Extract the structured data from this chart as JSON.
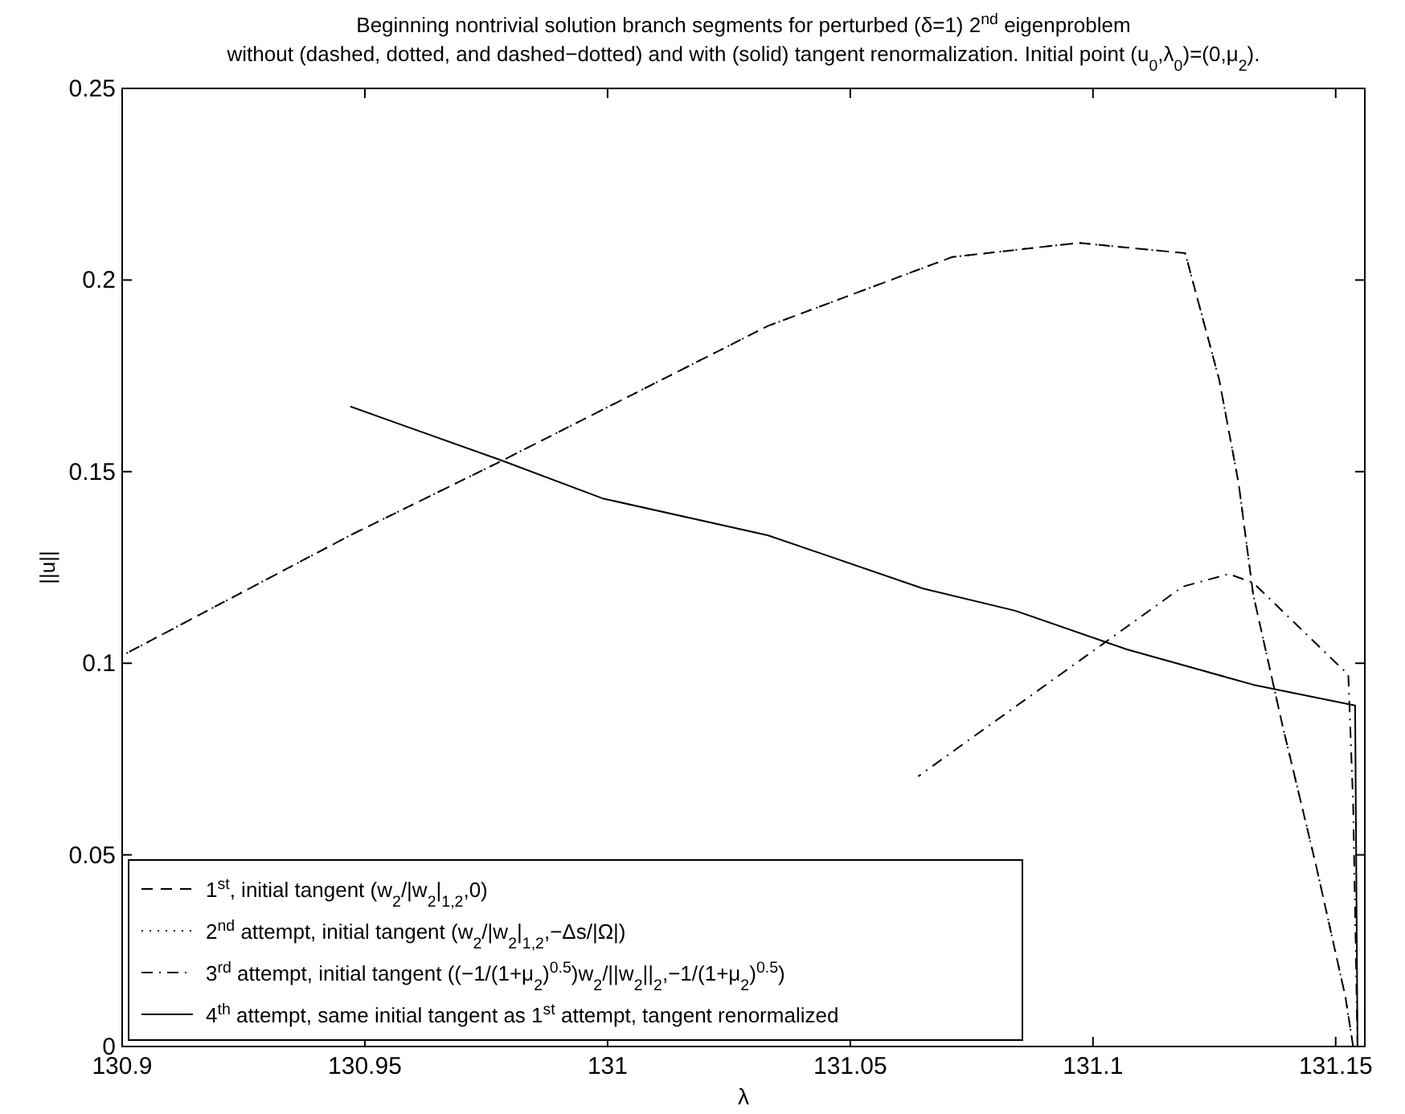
{
  "chart_data": {
    "type": "line",
    "title": "Beginning nontrivial solution branch segments for perturbed (δ=1) 2$^{nd}$ eigenproblem",
    "subtitle": "without (dashed, dotted, and dashed−dotted) and with (solid) tangent renormalization.  Initial point (u$_{0}$,λ$_{0}$)=(0,μ$_{2}$).",
    "xlabel": "λ",
    "ylabel": "||u||",
    "xlim": [
      130.9,
      131.156
    ],
    "xticks": [
      130.9,
      130.95,
      131,
      131.05,
      131.1,
      131.15
    ],
    "ylim": [
      0,
      0.25
    ],
    "yticks": [
      0,
      0.05,
      0.1,
      0.15,
      0.2,
      0.25
    ],
    "grid": false,
    "legend": "bottom left",
    "series": [
      {
        "name": "1$^{st}$, initial tangent (w$_{2}$/|w$_{2}$|$_{1,2}$,0)",
        "color": "#000000",
        "line_style": "dashed",
        "x": [
          131.1536,
          131.152,
          131.146,
          131.139,
          131.133,
          131.13,
          131.126,
          131.119,
          131.097,
          131.071,
          131.033,
          130.978,
          130.947,
          130.9
        ],
        "values": [
          0,
          0.013,
          0.047,
          0.084,
          0.118,
          0.147,
          0.174,
          0.207,
          0.2097,
          0.206,
          0.188,
          0.1527,
          0.1334,
          0.102
        ]
      },
      {
        "name": "2$^{nd}$ attempt, initial tangent (w$_{2}$/|w$_{2}$|$_{1,2}$,−Δs/|Ω|)",
        "color": "#000000",
        "line_style": "dotted",
        "x": [
          131.1536,
          131.152,
          131.146,
          131.139,
          131.133,
          131.13,
          131.126,
          131.119,
          131.097,
          131.071,
          131.033,
          130.978,
          130.947,
          130.9
        ],
        "values": [
          0,
          0.013,
          0.047,
          0.084,
          0.118,
          0.147,
          0.174,
          0.207,
          0.2097,
          0.206,
          0.188,
          0.1527,
          0.1334,
          0.102
        ]
      },
      {
        "name": "3$^{rd}$ attempt, initial tangent ((−1/(1+μ$_{2}$)$^{0.5}$)w$_{2}$/||w$_{2}$||$_{2}$,−1/(1+μ$_{2}$)$^{0.5}$)",
        "color": "#000000",
        "line_style": "dashdot",
        "x": [
          131.1545,
          131.1536,
          131.1526,
          131.133,
          131.128,
          131.1185,
          131.102,
          131.064
        ],
        "values": [
          0,
          0.063,
          0.097,
          0.121,
          0.1233,
          0.12,
          0.105,
          0.0705
        ]
      },
      {
        "name": "4$^{th}$ attempt, same initial tangent as 1$^{st}$ attempt, tangent renormalized",
        "color": "#000000",
        "line_style": "solid",
        "x": [
          131.1545,
          131.154,
          131.133,
          131.107,
          131.084,
          131.065,
          131.033,
          130.999,
          130.978,
          130.947
        ],
        "values": [
          0,
          0.089,
          0.0944,
          0.1036,
          0.1137,
          0.1195,
          0.1334,
          0.143,
          0.153,
          0.167
        ]
      }
    ]
  }
}
